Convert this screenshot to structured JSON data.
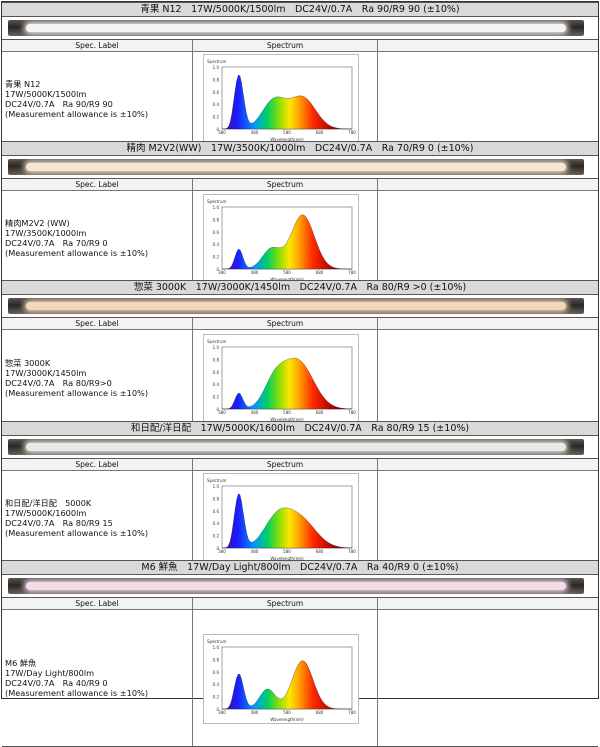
{
  "headers": {
    "spec_label": "Spec. Label",
    "spectrum": "Spectrum"
  },
  "items": [
    {
      "title": "青果 N12　17W/5000K/1500lm　DC24V/0.7A　Ra 90/R9 90 (±10%)",
      "label_lines": [
        "青果 N12",
        "17W/5000K/1500lm",
        "DC24V/0.7A　Ra 90/R9 90",
        "(Measurement allowance is ±10%)"
      ],
      "tube_color": "#f4f4f2",
      "spectrum_type": "cool"
    },
    {
      "title": "精肉 M2V2(WW)　17W/3500K/1000lm　DC24V/0.7A　Ra 70/R9 0 (±10%)",
      "label_lines": [
        "精肉M2V2 (WW)",
        "17W/3500K/1000lm",
        "DC24V/0.7A　Ra 70/R9 0",
        "(Measurement allowance is ±10%)"
      ],
      "tube_color": "#f6e6d2",
      "spectrum_type": "warm"
    },
    {
      "title": "惣菜 3000K　17W/3000K/1450lm　DC24V/0.7A　Ra 80/R9 >0 (±10%)",
      "label_lines": [
        "惣菜 3000K",
        "17W/3000K/1450lm",
        "DC24V/0.7A　Ra 80/R9>0",
        "(Measurement allowance is ±10%)"
      ],
      "tube_color": "#f2d8b8",
      "spectrum_type": "warm3000"
    },
    {
      "title": "和日配/洋日配　17W/5000K/1600lm　DC24V/0.7A　Ra 80/R9 15 (±10%)",
      "label_lines": [
        "和日配/洋日配　5000K",
        "17W/5000K/1600lm",
        "DC24V/0.7A　Ra 80/R9 15",
        "(Measurement allowance is ±10%)"
      ],
      "tube_color": "#e9e9e6",
      "spectrum_type": "flat5000"
    },
    {
      "title": "M6 鮮魚　17W/Day Light/800lm　DC24V/0.7A　Ra 40/R9 0 (±10%)",
      "label_lines": [
        "M6 鮮魚",
        "17W/Day Light/800lm",
        "DC24V/0.7A　Ra 40/R9 0",
        "(Measurement allowance is ±10%)"
      ],
      "tube_color": "#f4dbe8",
      "spectrum_type": "pinkfish"
    }
  ],
  "spectrum_chart": {
    "y_axis_label": "Spectrum",
    "x_axis_label": "Wavelength(nm)",
    "x_ticks": [
      "380",
      "480",
      "580",
      "680",
      "780"
    ],
    "y_ticks": [
      "1.0",
      "0.8",
      "0.6",
      "0.4",
      "0.2",
      "0"
    ]
  }
}
